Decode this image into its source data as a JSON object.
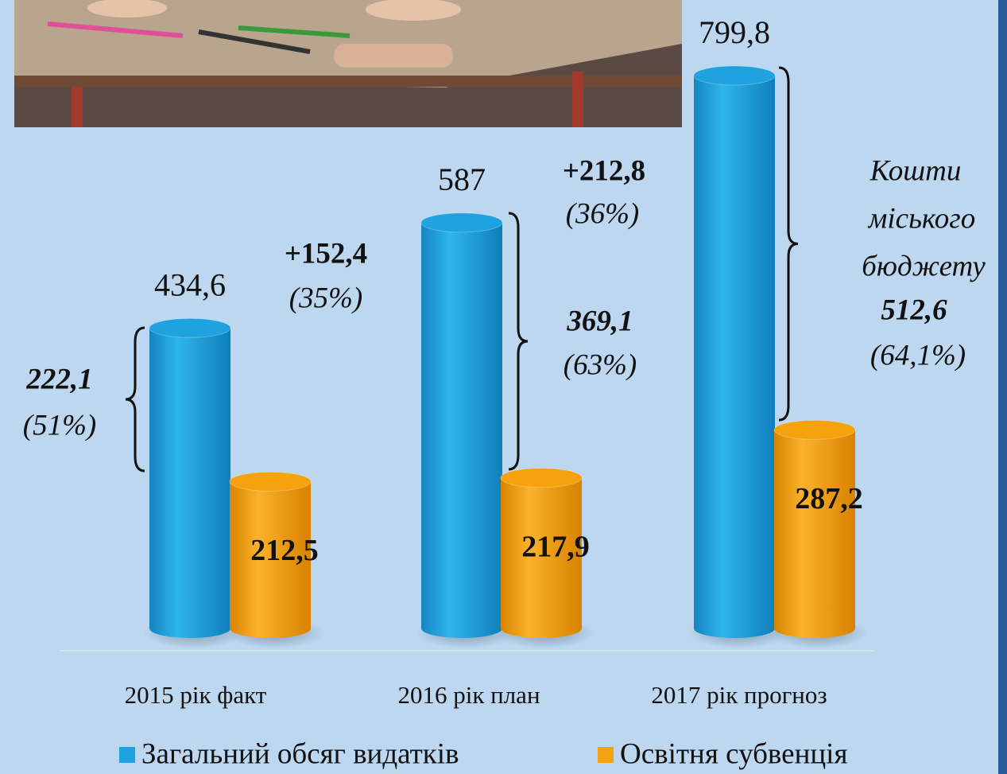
{
  "chart_data": {
    "type": "bar",
    "categories": [
      "2015 рік факт",
      "2016 рік план",
      "2017 рік прогноз"
    ],
    "series": [
      {
        "name": "Загальний обсяг видатків",
        "color": "#1ea3e0",
        "values": [
          434.6,
          587,
          799.8
        ],
        "value_labels": [
          "434,6",
          "587",
          "799,8"
        ]
      },
      {
        "name": "Освітня субвенція",
        "color": "#f5a20c",
        "values": [
          212.5,
          217.9,
          287.2
        ],
        "value_labels": [
          "212,5",
          "217,9",
          "287,2"
        ]
      }
    ],
    "annotations": [
      "+152,4",
      "(35%)",
      "+212,8",
      "(36%)",
      "222,1",
      "(51%)",
      "369,1",
      "(63%)",
      "Кошти",
      "міського",
      "бюджету",
      "512,6",
      "(64,1%)"
    ]
  }
}
